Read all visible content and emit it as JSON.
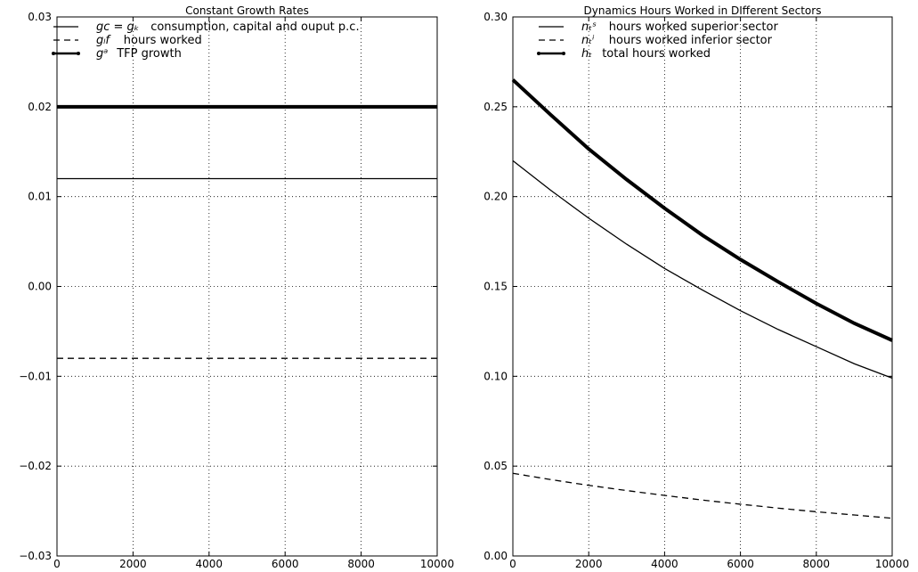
{
  "chart_data": [
    {
      "type": "line",
      "title": "Constant Growth Rates",
      "xlabel": "",
      "ylabel": "",
      "xlim": [
        0,
        10000
      ],
      "ylim": [
        -0.03,
        0.03
      ],
      "xticks": [
        0,
        2000,
        4000,
        6000,
        8000,
        10000
      ],
      "yticks": [
        -0.03,
        -0.02,
        -0.01,
        0.0,
        0.01,
        0.02,
        0.03
      ],
      "ytick_labels": [
        "−0.03",
        "−0.02",
        "−0.01",
        "0.00",
        "0.01",
        "0.02",
        "0.03"
      ],
      "xtick_labels": [
        "0",
        "2000",
        "4000",
        "6000",
        "8000",
        "10000"
      ],
      "grid": true,
      "legend_position": "top-left",
      "series": [
        {
          "name": "g_c = g_k consumption, capital and ouput p.c.",
          "legend_math": "gᴄ = gₖ",
          "legend_text": "consumption, capital and ouput p.c.",
          "style": "solid",
          "x": [
            0,
            10000
          ],
          "y": [
            0.012,
            0.012
          ]
        },
        {
          "name": "g_lf hours worked",
          "legend_math": "gₗf",
          "legend_text": "hours worked",
          "style": "dashed",
          "x": [
            0,
            10000
          ],
          "y": [
            -0.008,
            -0.008
          ]
        },
        {
          "name": "g^a TFP growth",
          "legend_math": "gᵃ",
          "legend_text": "TFP growth",
          "style": "dotted-thick",
          "x": [
            0,
            10000
          ],
          "y": [
            0.02,
            0.02
          ]
        }
      ]
    },
    {
      "type": "line",
      "title": "Dynamics Hours Worked in DIfferent Sectors",
      "xlabel": "",
      "ylabel": "",
      "xlim": [
        0,
        10000
      ],
      "ylim": [
        0.0,
        0.3
      ],
      "xticks": [
        0,
        2000,
        4000,
        6000,
        8000,
        10000
      ],
      "yticks": [
        0.0,
        0.05,
        0.1,
        0.15,
        0.2,
        0.25,
        0.3
      ],
      "ytick_labels": [
        "0.00",
        "0.05",
        "0.10",
        "0.15",
        "0.20",
        "0.25",
        "0.30"
      ],
      "xtick_labels": [
        "0",
        "2000",
        "4000",
        "6000",
        "8000",
        "10000"
      ],
      "grid": true,
      "legend_position": "top-center",
      "series": [
        {
          "name": "n_t^s hours worked superior sector",
          "legend_math": "nₜˢ",
          "legend_text": "hours worked superior sector",
          "style": "solid",
          "x": [
            0,
            1000,
            2000,
            3000,
            4000,
            5000,
            6000,
            7000,
            8000,
            9000,
            10000
          ],
          "y": [
            0.22,
            0.2035,
            0.188,
            0.1735,
            0.16,
            0.148,
            0.1365,
            0.126,
            0.1165,
            0.107,
            0.099
          ]
        },
        {
          "name": "n_t^i hours worked inferior sector",
          "legend_math": "nₜⁱ",
          "legend_text": "hours worked inferior sector",
          "style": "dashed",
          "x": [
            0,
            1000,
            2000,
            3000,
            4000,
            5000,
            6000,
            7000,
            8000,
            9000,
            10000
          ],
          "y": [
            0.046,
            0.0425,
            0.0393,
            0.0364,
            0.0337,
            0.0311,
            0.0288,
            0.0266,
            0.0246,
            0.0228,
            0.021
          ]
        },
        {
          "name": "h_t total hours worked",
          "legend_math": "hₜ",
          "legend_text": "total hours worked",
          "style": "dotted-thick",
          "x": [
            0,
            1000,
            2000,
            3000,
            4000,
            5000,
            6000,
            7000,
            8000,
            9000,
            10000
          ],
          "y": [
            0.265,
            0.2455,
            0.2265,
            0.2095,
            0.1935,
            0.1785,
            0.165,
            0.1525,
            0.1405,
            0.1295,
            0.12
          ]
        }
      ]
    }
  ]
}
